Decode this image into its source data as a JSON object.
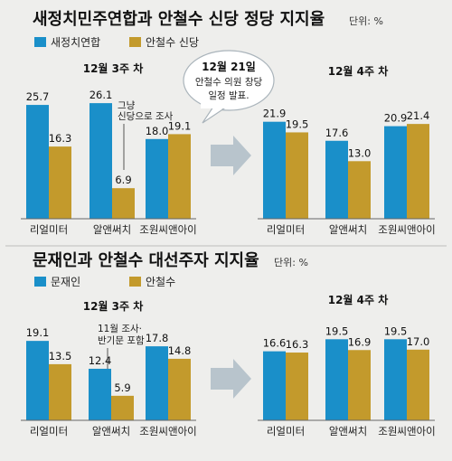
{
  "chart_data": [
    {
      "type": "bar",
      "title": "새정치민주연합과 안철수 신당 정당 지지율",
      "unit": "단위: %",
      "series_names": [
        "새정치연합",
        "안철수 신당"
      ],
      "groups": [
        {
          "label": "12월 3주 차",
          "categories": [
            "리얼미터",
            "알앤써치",
            "조원씨앤아이"
          ],
          "series": [
            {
              "name": "새정치연합",
              "values": [
                25.7,
                26.1,
                18.0
              ]
            },
            {
              "name": "안철수 신당",
              "values": [
                16.3,
                6.9,
                19.1
              ]
            }
          ]
        },
        {
          "label": "12월 4주 차",
          "categories": [
            "리얼미터",
            "알앤써치",
            "조원씨앤아이"
          ],
          "series": [
            {
              "name": "새정치연합",
              "values": [
                21.9,
                17.6,
                20.9
              ]
            },
            {
              "name": "안철수 신당",
              "values": [
                19.5,
                13.0,
                21.4
              ]
            }
          ]
        }
      ],
      "annotations": {
        "note": [
          "그냥",
          "신당으로 조사"
        ],
        "bubble": [
          "12월 21일",
          "안철수 의원 창당",
          "일정 발표."
        ]
      }
    },
    {
      "type": "bar",
      "title": "문재인과 안철수 대선주자 지지율",
      "unit": "단위: %",
      "series_names": [
        "문재인",
        "안철수"
      ],
      "groups": [
        {
          "label": "12월 3주 차",
          "categories": [
            "리얼미터",
            "알앤써치",
            "조원씨앤아이"
          ],
          "series": [
            {
              "name": "문재인",
              "values": [
                19.1,
                12.4,
                17.8
              ]
            },
            {
              "name": "안철수",
              "values": [
                13.5,
                5.9,
                14.8
              ]
            }
          ]
        },
        {
          "label": "12월 4주 차",
          "categories": [
            "리얼미터",
            "알앤써치",
            "조원씨앤아이"
          ],
          "series": [
            {
              "name": "문재인",
              "values": [
                16.6,
                19.5,
                19.5
              ]
            },
            {
              "name": "안철수",
              "values": [
                16.3,
                16.9,
                17.0
              ]
            }
          ]
        }
      ],
      "annotations": {
        "note": [
          "11월 조사·",
          "반기문 포함"
        ]
      }
    }
  ],
  "colors": {
    "blue": "#1a8fc9",
    "gold": "#c39a2c",
    "arrow": "#b8c4cc",
    "bubble_border": "#aab4bb"
  }
}
